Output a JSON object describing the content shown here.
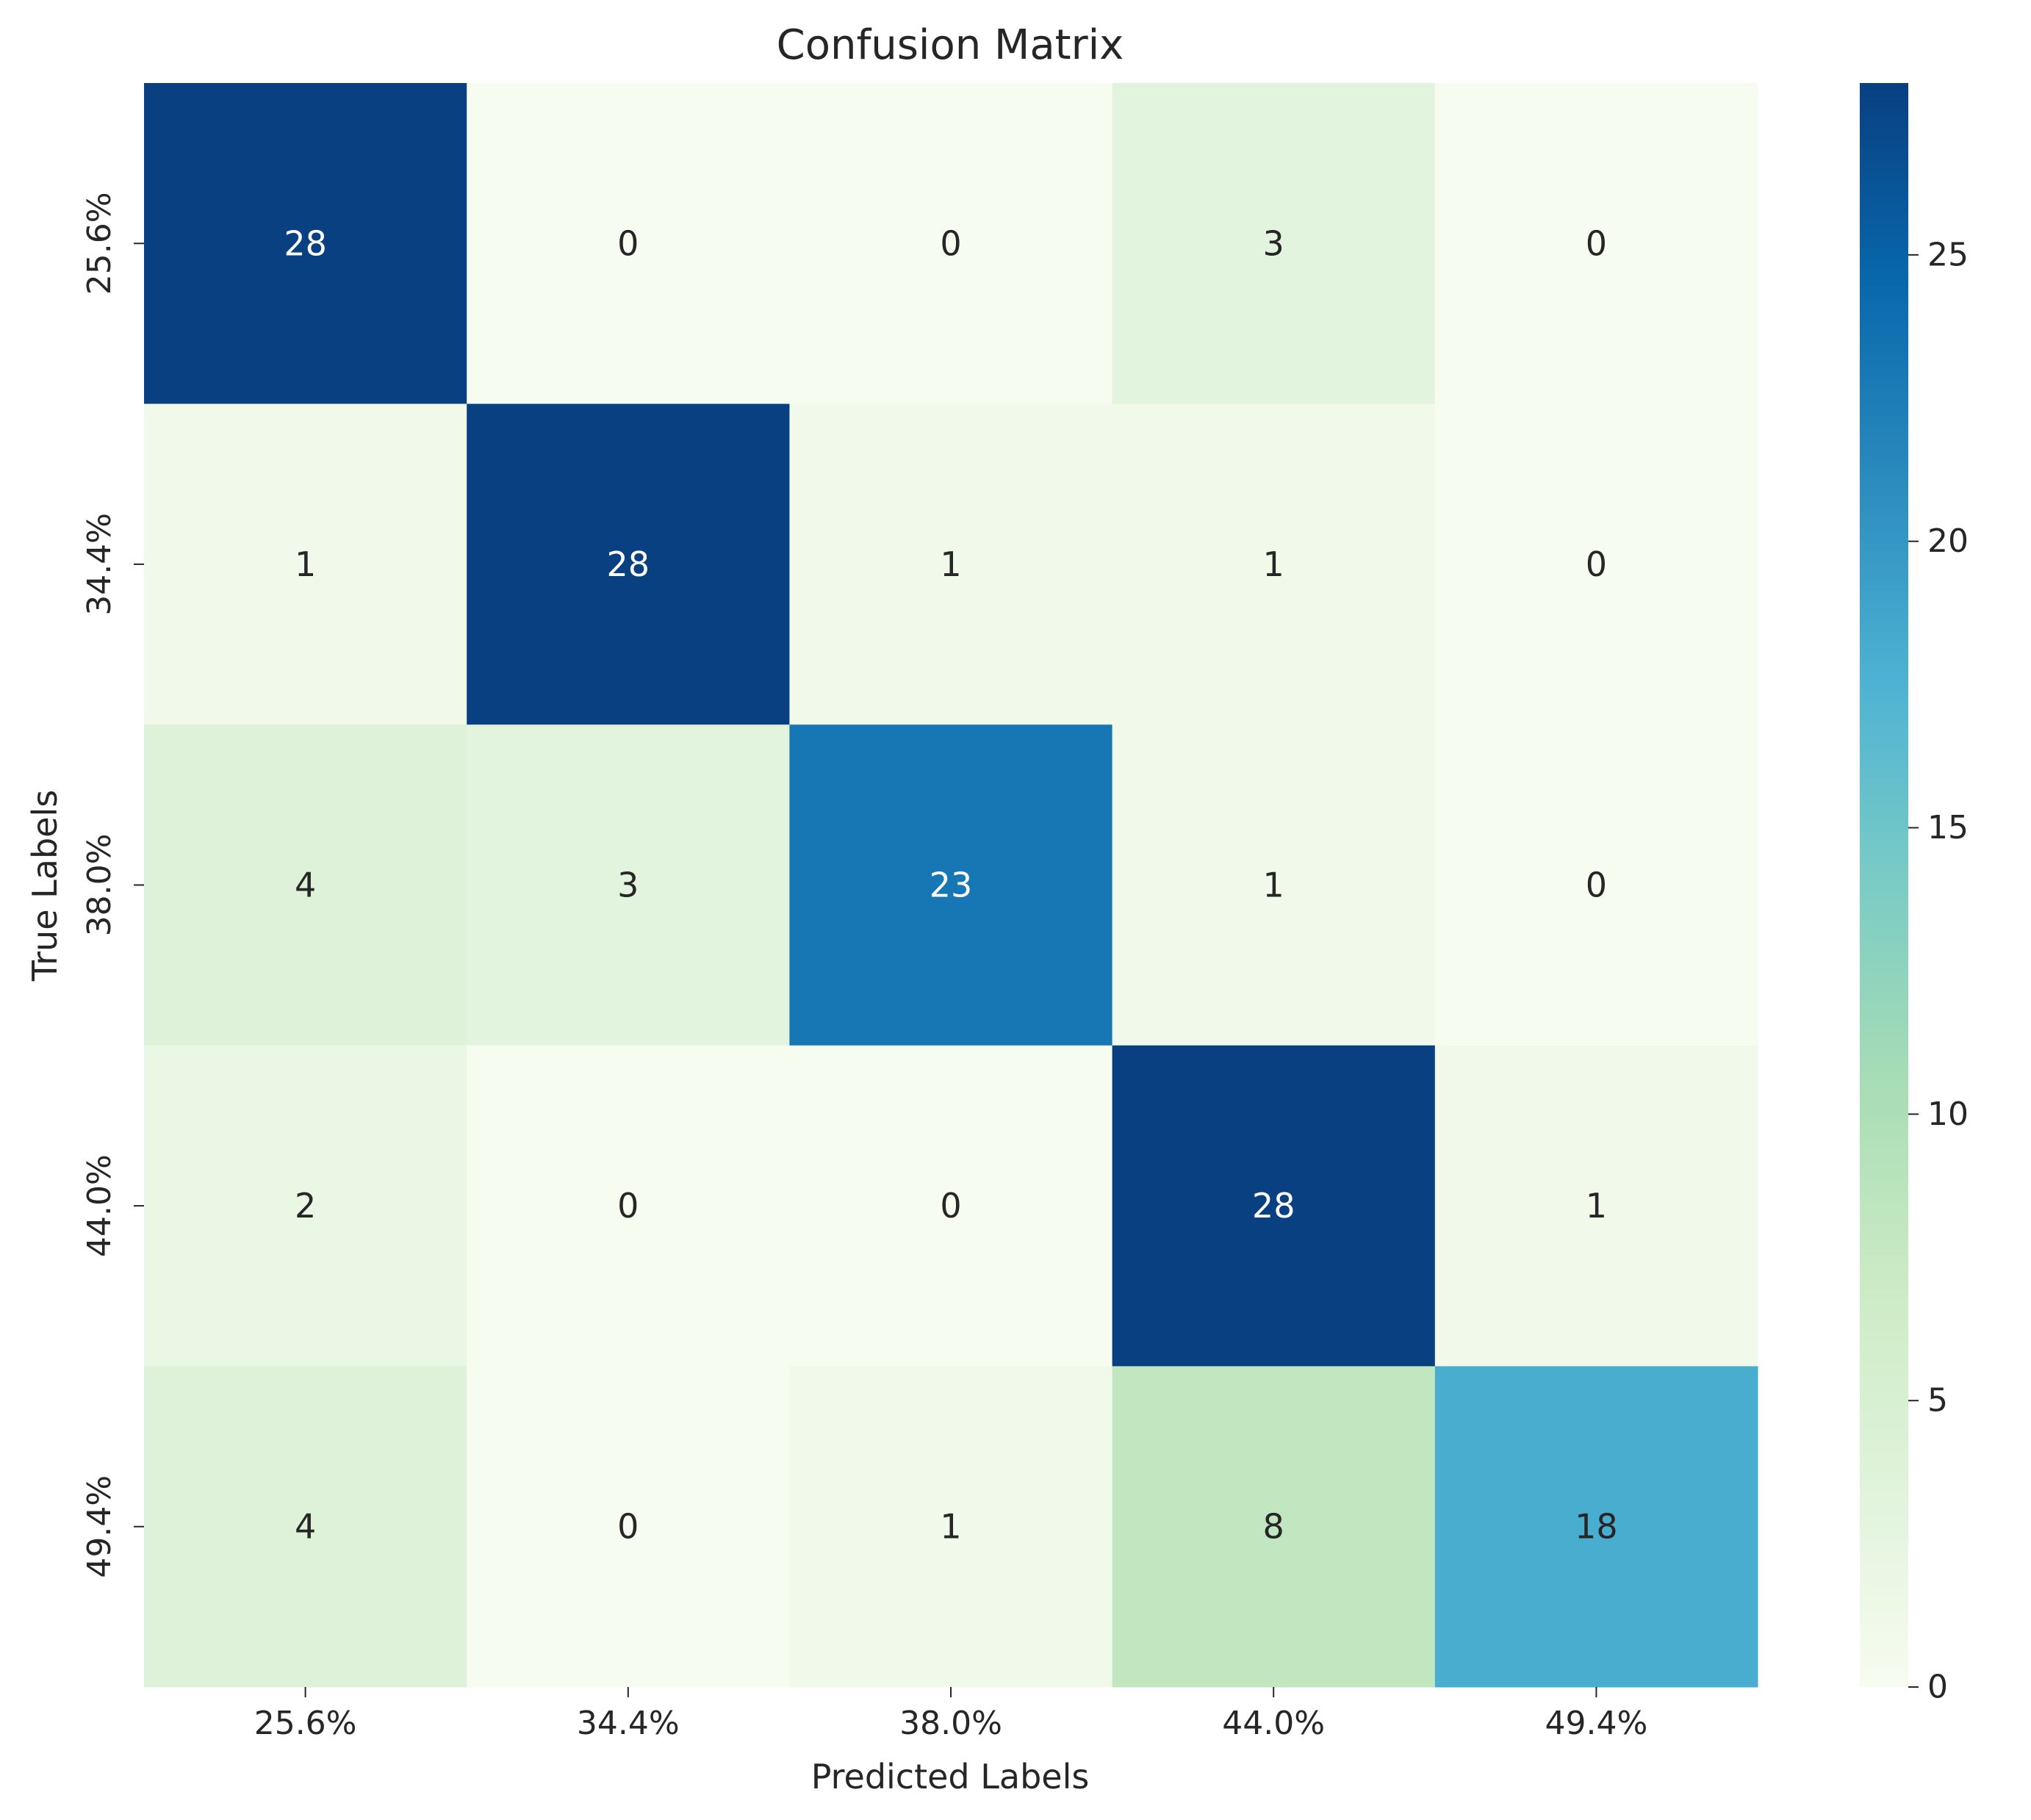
{
  "chart_data": {
    "type": "heatmap",
    "title": "Confusion Matrix",
    "xlabel": "Predicted Labels",
    "ylabel": "True Labels",
    "x_categories": [
      "25.6%",
      "34.4%",
      "38.0%",
      "44.0%",
      "49.4%"
    ],
    "y_categories": [
      "25.6%",
      "34.4%",
      "38.0%",
      "44.0%",
      "49.4%"
    ],
    "values": [
      [
        28,
        0,
        0,
        3,
        0
      ],
      [
        1,
        28,
        1,
        1,
        0
      ],
      [
        4,
        3,
        23,
        1,
        0
      ],
      [
        2,
        0,
        0,
        28,
        1
      ],
      [
        4,
        0,
        1,
        8,
        18
      ]
    ],
    "colormap": "GnBu",
    "vmin": 0,
    "vmax": 28,
    "colorbar_ticks": [
      0,
      5,
      10,
      15,
      20,
      25
    ],
    "colorbar_tick_labels": [
      "0",
      "5",
      "10",
      "15",
      "20",
      "25"
    ]
  }
}
